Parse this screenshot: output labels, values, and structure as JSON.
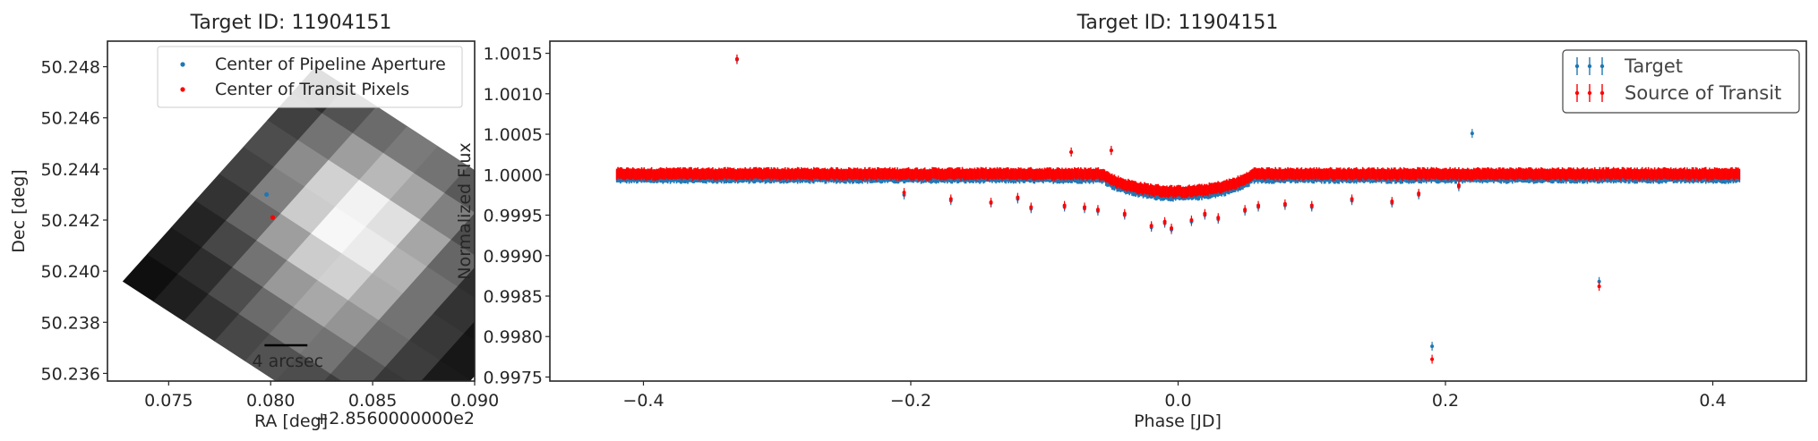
{
  "colors": {
    "target": "#1f77b4",
    "transit": "#ff0000",
    "axes": "#262626",
    "background": "#ffffff"
  },
  "left_panel": {
    "title": "Target ID: 11904151",
    "xlabel": "RA [deg]",
    "offset_label": "+2.8560000000e2",
    "ylabel": "Dec [deg]",
    "scalebar_label": "4 arcsec",
    "legend": [
      {
        "label": "Center of Pipeline Aperture",
        "color": "#1f77b4"
      },
      {
        "label": "Center of Transit Pixels",
        "color": "#ff0000"
      }
    ]
  },
  "right_panel": {
    "title": "Target ID: 11904151",
    "xlabel": "Phase [JD]",
    "ylabel": "Normalized Flux",
    "legend": [
      {
        "label": "Target",
        "color": "#1f77b4"
      },
      {
        "label": "Source of Transit",
        "color": "#ff0000"
      }
    ]
  },
  "chart_data": [
    {
      "type": "heatmap",
      "title": "Target ID: 11904151",
      "xlabel": "RA [deg]",
      "ylabel": "Dec [deg]",
      "x_offset": "+2.8560000000e2",
      "xlim": [
        0.072,
        0.09
      ],
      "ylim": [
        50.2357,
        50.249
      ],
      "xticks": [
        0.075,
        0.08,
        0.085,
        0.09
      ],
      "xtick_labels": [
        "0.075",
        "0.080",
        "0.085",
        "0.090"
      ],
      "yticks": [
        50.236,
        50.238,
        50.24,
        50.242,
        50.244,
        50.246,
        50.248
      ],
      "ytick_labels": [
        "50.236",
        "50.238",
        "50.240",
        "50.242",
        "50.244",
        "50.246",
        "50.248"
      ],
      "pixel_grid": {
        "rows": 8,
        "cols": 9,
        "origin": [
          0.0822,
          50.248
        ],
        "col_step": [
          0.0015,
          -0.00078
        ],
        "row_step": [
          -0.00118,
          -0.00105
        ],
        "intensity": [
          [
            0.18,
            0.32,
            0.42,
            0.48,
            0.45,
            0.35,
            0.22,
            0.12,
            0.06
          ],
          [
            0.25,
            0.45,
            0.62,
            0.72,
            0.65,
            0.5,
            0.3,
            0.15,
            0.07
          ],
          [
            0.3,
            0.55,
            0.82,
            0.95,
            0.88,
            0.65,
            0.4,
            0.18,
            0.08
          ],
          [
            0.26,
            0.5,
            0.8,
            0.97,
            0.92,
            0.7,
            0.45,
            0.2,
            0.08
          ],
          [
            0.2,
            0.4,
            0.62,
            0.8,
            0.82,
            0.68,
            0.45,
            0.22,
            0.09
          ],
          [
            0.14,
            0.28,
            0.45,
            0.6,
            0.66,
            0.58,
            0.42,
            0.24,
            0.1
          ],
          [
            0.1,
            0.18,
            0.3,
            0.42,
            0.48,
            0.45,
            0.34,
            0.22,
            0.1
          ],
          [
            0.06,
            0.12,
            0.2,
            0.28,
            0.32,
            0.3,
            0.24,
            0.16,
            0.08
          ]
        ]
      },
      "points": [
        {
          "name": "Center of Pipeline Aperture",
          "x": 0.0798,
          "y": 50.243,
          "color": "#1f77b4"
        },
        {
          "name": "Center of Transit Pixels",
          "x": 0.0801,
          "y": 50.2421,
          "color": "#ff0000"
        }
      ],
      "scalebar": {
        "label": "4 arcsec",
        "x": [
          0.0797,
          0.0818
        ],
        "y": 50.2371
      },
      "legend_position": "upper-right"
    },
    {
      "type": "scatter",
      "title": "Target ID: 11904151",
      "xlabel": "Phase [JD]",
      "ylabel": "Normalized Flux",
      "xlim": [
        -0.47,
        0.47
      ],
      "ylim": [
        0.99745,
        1.00165
      ],
      "xticks": [
        -0.4,
        -0.2,
        0.0,
        0.2,
        0.4
      ],
      "xtick_labels": [
        "−0.4",
        "−0.2",
        "0.0",
        "0.2",
        "0.4"
      ],
      "yticks": [
        0.9975,
        0.998,
        0.9985,
        0.999,
        0.9995,
        1.0,
        1.0005,
        1.001,
        1.0015
      ],
      "ytick_labels": [
        "0.9975",
        "0.9980",
        "0.9985",
        "0.9990",
        "0.9995",
        "1.0000",
        "1.0005",
        "1.0010",
        "1.0015"
      ],
      "x_range": [
        -0.42,
        0.42
      ],
      "baseline_flux": 1.0,
      "band_half_width": 8e-05,
      "transit": {
        "center": 0.0,
        "half_duration": 0.055,
        "depth": 0.00022
      },
      "outliers": [
        {
          "x": -0.33,
          "target": 1.00142,
          "source": 1.00143
        },
        {
          "x": 0.19,
          "target": 0.99788,
          "source": 0.99772
        },
        {
          "x": 0.315,
          "target": 0.99868,
          "source": 0.99862
        },
        {
          "x": 0.22,
          "target": 1.00051,
          "source": null
        },
        {
          "x": -0.08,
          "target": 1.00028,
          "source": 1.00028
        },
        {
          "x": -0.05,
          "target": 1.0003,
          "source": 1.0003
        },
        {
          "x": -0.205,
          "target": 0.99975,
          "source": 0.99978
        },
        {
          "x": -0.17,
          "target": 0.99968,
          "source": 0.9997
        },
        {
          "x": -0.14,
          "target": 0.99965,
          "source": 0.99966
        },
        {
          "x": -0.12,
          "target": 0.9997,
          "source": 0.99972
        },
        {
          "x": -0.11,
          "target": 0.99958,
          "source": 0.9996
        },
        {
          "x": -0.085,
          "target": 0.9996,
          "source": 0.99962
        },
        {
          "x": -0.07,
          "target": 0.99958,
          "source": 0.9996
        },
        {
          "x": -0.06,
          "target": 0.99955,
          "source": 0.99957
        },
        {
          "x": -0.04,
          "target": 0.9995,
          "source": 0.99952
        },
        {
          "x": -0.02,
          "target": 0.99935,
          "source": 0.99937
        },
        {
          "x": -0.01,
          "target": 0.9994,
          "source": 0.99942
        },
        {
          "x": -0.005,
          "target": 0.99932,
          "source": 0.99934
        },
        {
          "x": 0.01,
          "target": 0.99942,
          "source": 0.99944
        },
        {
          "x": 0.02,
          "target": 0.9995,
          "source": 0.99952
        },
        {
          "x": 0.03,
          "target": 0.99945,
          "source": 0.99947
        },
        {
          "x": 0.05,
          "target": 0.99955,
          "source": 0.99957
        },
        {
          "x": 0.06,
          "target": 0.9996,
          "source": 0.99962
        },
        {
          "x": 0.08,
          "target": 0.99962,
          "source": 0.99964
        },
        {
          "x": 0.1,
          "target": 0.9996,
          "source": 0.99962
        },
        {
          "x": 0.13,
          "target": 0.99968,
          "source": 0.9997
        },
        {
          "x": 0.16,
          "target": 0.99965,
          "source": 0.99967
        },
        {
          "x": 0.18,
          "target": 0.99975,
          "source": 0.99977
        },
        {
          "x": 0.21,
          "target": 0.99985,
          "source": 0.99987
        }
      ],
      "series": [
        {
          "name": "Target",
          "color": "#1f77b4"
        },
        {
          "name": "Source of Transit",
          "color": "#ff0000"
        }
      ],
      "legend_position": "upper-right"
    }
  ]
}
